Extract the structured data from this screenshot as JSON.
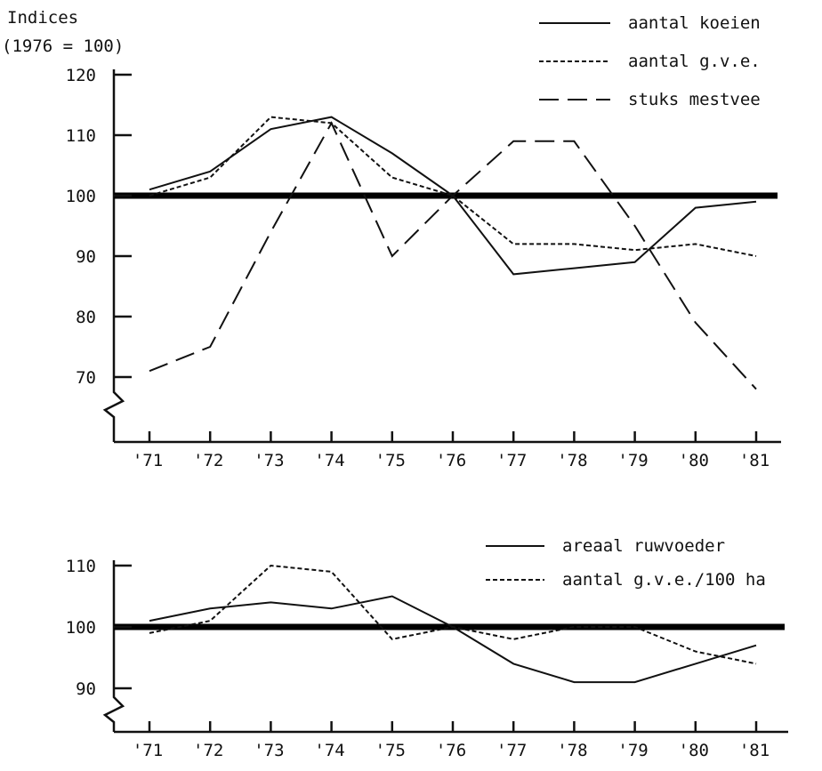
{
  "chart_data": [
    {
      "type": "line",
      "title": "",
      "ylabel_lines": [
        "Indices",
        "(1976 = 100)"
      ],
      "xlabel": "",
      "categories": [
        "'71",
        "'72",
        "'73",
        "'74",
        "'75",
        "'76",
        "'77",
        "'78",
        "'79",
        "'80",
        "'81"
      ],
      "yticks": [
        120,
        110,
        100,
        90,
        80,
        70
      ],
      "ylim": [
        68,
        120
      ],
      "axis_break": true,
      "reference_line": 100,
      "grid": false,
      "legend_position": "top-right",
      "series": [
        {
          "name": "aantal koeien",
          "style": "solid",
          "values": [
            101,
            104,
            111,
            113,
            107,
            100,
            87,
            88,
            89,
            98,
            99
          ]
        },
        {
          "name": "aantal g.v.e.",
          "style": "dotted",
          "values": [
            100,
            103,
            113,
            112,
            103,
            100,
            92,
            92,
            91,
            92,
            90
          ]
        },
        {
          "name": "stuks mestvee",
          "style": "dashed",
          "values": [
            71,
            75,
            94,
            112,
            90,
            100,
            109,
            109,
            95,
            79,
            68
          ]
        }
      ]
    },
    {
      "type": "line",
      "title": "",
      "xlabel": "",
      "ylabel": "",
      "categories": [
        "'71",
        "'72",
        "'73",
        "'74",
        "'75",
        "'76",
        "'77",
        "'78",
        "'79",
        "'80",
        "'81"
      ],
      "yticks": [
        110,
        100,
        90
      ],
      "ylim": [
        88,
        112
      ],
      "axis_break": true,
      "reference_line": 100,
      "grid": false,
      "legend_position": "top-right",
      "series": [
        {
          "name": "areaal ruwvoeder",
          "style": "solid",
          "values": [
            101,
            103,
            104,
            103,
            105,
            100,
            94,
            91,
            91,
            94,
            97
          ]
        },
        {
          "name": "aantal g.v.e./100 ha",
          "style": "dotted",
          "values": [
            99,
            101,
            110,
            109,
            98,
            100,
            98,
            100,
            100,
            96,
            94
          ]
        }
      ]
    }
  ]
}
